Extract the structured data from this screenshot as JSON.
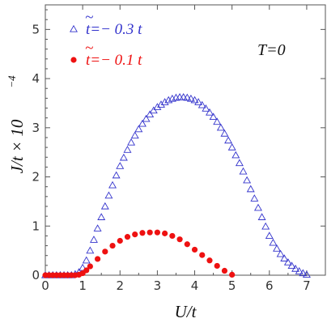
{
  "chart_data": {
    "type": "scatter",
    "xlabel": "U/t",
    "ylabel": "J/t × 10",
    "ylabel_exponent": "−4",
    "xlim": [
      0,
      7.5
    ],
    "ylim": [
      0,
      5.5
    ],
    "xticks": [
      0,
      1,
      2,
      3,
      4,
      5,
      6,
      7
    ],
    "yticks": [
      0,
      1,
      2,
      3,
      4,
      5
    ],
    "annotation": "T=0",
    "legend_position": "top-left",
    "series": [
      {
        "name": "t=− 0.3 t",
        "marker": "triangle-open",
        "color": "#3333cc",
        "x": [
          0.0,
          0.1,
          0.2,
          0.3,
          0.4,
          0.5,
          0.6,
          0.7,
          0.8,
          0.9,
          1.0,
          1.1,
          1.2,
          1.3,
          1.4,
          1.5,
          1.6,
          1.7,
          1.8,
          1.9,
          2.0,
          2.1,
          2.2,
          2.3,
          2.4,
          2.5,
          2.6,
          2.7,
          2.8,
          2.9,
          3.0,
          3.1,
          3.2,
          3.3,
          3.4,
          3.5,
          3.6,
          3.7,
          3.8,
          3.9,
          4.0,
          4.1,
          4.2,
          4.3,
          4.4,
          4.5,
          4.6,
          4.7,
          4.8,
          4.9,
          5.0,
          5.1,
          5.2,
          5.3,
          5.4,
          5.5,
          5.6,
          5.7,
          5.8,
          5.9,
          6.0,
          6.1,
          6.2,
          6.3,
          6.4,
          6.5,
          6.6,
          6.7,
          6.8,
          6.9,
          7.0
        ],
        "y": [
          0.0,
          0.0,
          0.0,
          0.0,
          0.0,
          0.0,
          0.0,
          0.0,
          0.02,
          0.06,
          0.15,
          0.3,
          0.5,
          0.72,
          0.95,
          1.18,
          1.4,
          1.62,
          1.83,
          2.03,
          2.22,
          2.39,
          2.55,
          2.7,
          2.84,
          2.97,
          3.08,
          3.18,
          3.27,
          3.35,
          3.42,
          3.47,
          3.52,
          3.56,
          3.59,
          3.61,
          3.62,
          3.62,
          3.61,
          3.59,
          3.56,
          3.52,
          3.46,
          3.39,
          3.31,
          3.22,
          3.12,
          3.0,
          2.88,
          2.74,
          2.6,
          2.44,
          2.28,
          2.11,
          1.93,
          1.75,
          1.56,
          1.37,
          1.18,
          0.99,
          0.8,
          0.66,
          0.54,
          0.43,
          0.34,
          0.26,
          0.19,
          0.13,
          0.08,
          0.04,
          0.01
        ]
      },
      {
        "name": "t=− 0.1 t",
        "marker": "circle-filled",
        "color": "#ee1111",
        "x": [
          0.0,
          0.1,
          0.2,
          0.3,
          0.4,
          0.5,
          0.6,
          0.7,
          0.8,
          0.9,
          1.0,
          1.1,
          1.2,
          1.4,
          1.6,
          1.8,
          2.0,
          2.2,
          2.4,
          2.6,
          2.8,
          3.0,
          3.2,
          3.4,
          3.6,
          3.8,
          4.0,
          4.2,
          4.4,
          4.6,
          4.8,
          5.0
        ],
        "y": [
          0.0,
          0.0,
          0.0,
          0.0,
          0.0,
          0.0,
          0.0,
          0.0,
          0.0,
          0.01,
          0.04,
          0.1,
          0.18,
          0.33,
          0.48,
          0.6,
          0.7,
          0.78,
          0.83,
          0.86,
          0.87,
          0.87,
          0.85,
          0.8,
          0.73,
          0.63,
          0.52,
          0.41,
          0.3,
          0.19,
          0.09,
          0.01
        ]
      }
    ]
  }
}
